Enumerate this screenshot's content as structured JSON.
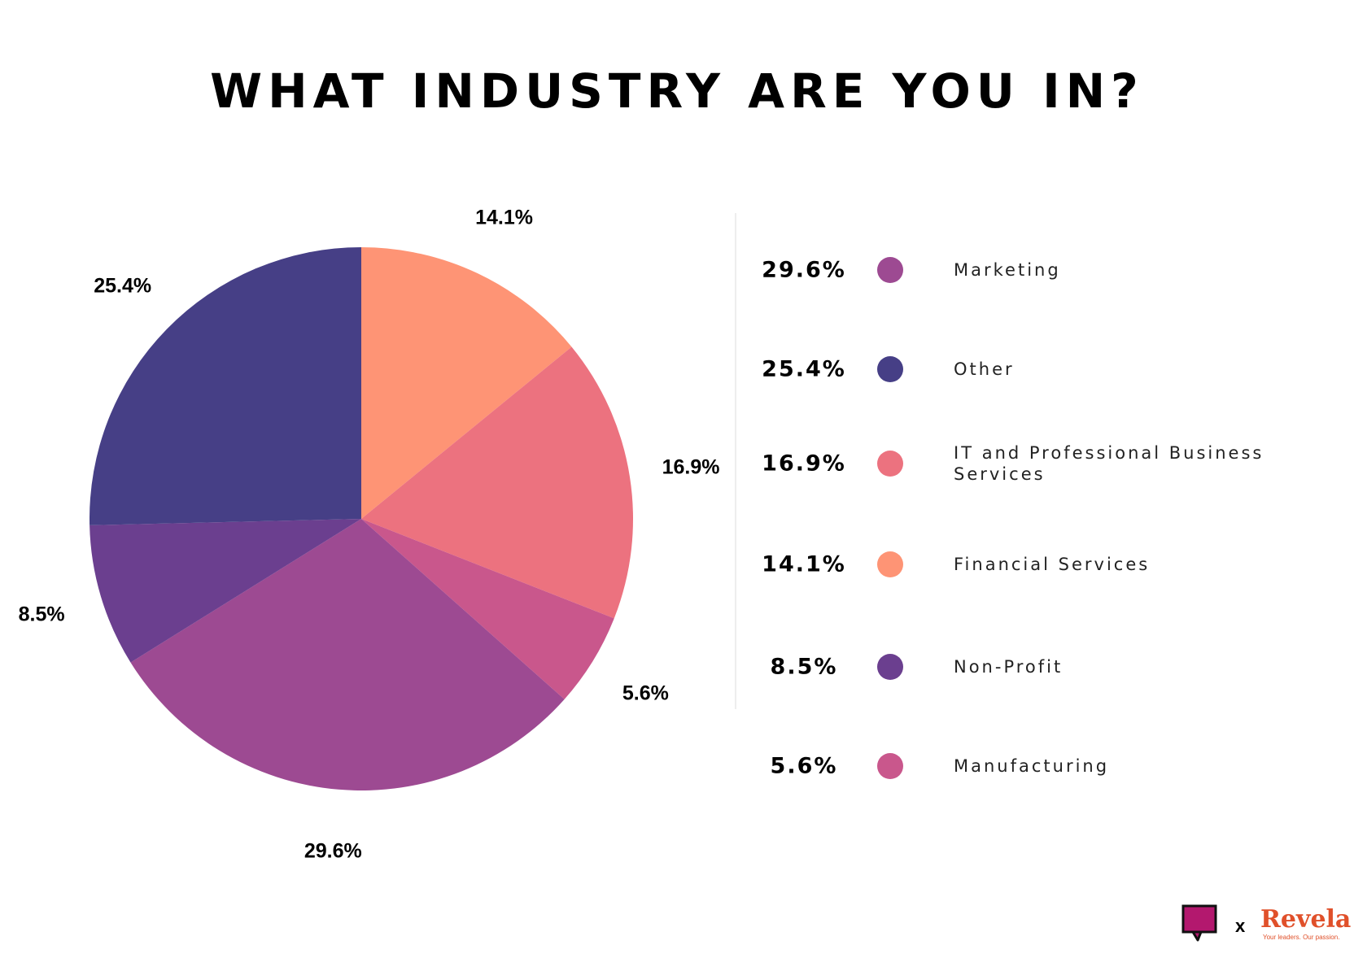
{
  "chart_data": {
    "type": "pie",
    "title": "WHAT INDUSTRY ARE YOU IN?",
    "slices": [
      {
        "label": "Financial Services",
        "value": 14.1,
        "display": "14.1%",
        "color": "#fe9475"
      },
      {
        "label": "IT and Professional Business Services",
        "value": 16.9,
        "display": "16.9%",
        "color": "#ec727f"
      },
      {
        "label": "Manufacturing",
        "value": 5.6,
        "display": "5.6%",
        "color": "#c9578c"
      },
      {
        "label": "Marketing",
        "value": 29.6,
        "display": "29.6%",
        "color": "#9d4a92"
      },
      {
        "label": "Non-Profit",
        "value": 8.5,
        "display": "8.5%",
        "color": "#6b3f8f"
      },
      {
        "label": "Other",
        "value": 25.4,
        "display": "25.4%",
        "color": "#463f86"
      }
    ],
    "start_angle": "12 o'clock",
    "direction": "clockwise",
    "legend_placement": "right",
    "legend_order": [
      "Marketing",
      "Other",
      "IT and Professional Business Services",
      "Financial Services",
      "Non-Profit",
      "Manufacturing"
    ]
  },
  "branding": {
    "logo_separator": "x",
    "brand_name": "Revela",
    "brand_tagline": "Your leaders. Our passion.",
    "chat_logo_icon": "speech-bubble-icon",
    "chat_logo_color": "#b3186e"
  }
}
